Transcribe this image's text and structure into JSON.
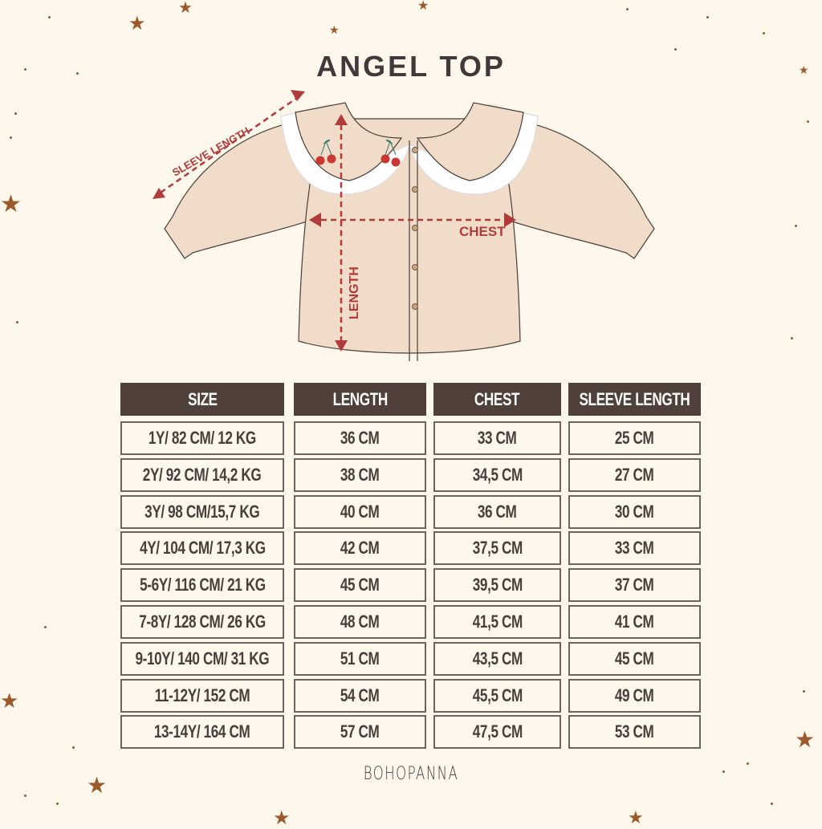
{
  "title": "ANGEL TOP",
  "diagram": {
    "labels": {
      "sleeve_length": "SLEEVE LENGTH",
      "chest": "CHEST",
      "length": "LENGTH"
    },
    "colors": {
      "arrow": "#b13a3a",
      "garment": "#f0dcc8",
      "outline": "#4a3e38",
      "collar_lace": "#ffffff",
      "cherry": "#c8382e",
      "leaf": "#2f7a6a"
    }
  },
  "table": {
    "headers": [
      "SIZE",
      "LENGTH",
      "CHEST",
      "SLEEVE LENGTH"
    ],
    "rows": [
      [
        "1Y/ 82 CM/ 12 KG",
        "36 CM",
        "33 CM",
        "25 CM"
      ],
      [
        "2Y/ 92 CM/ 14,2 KG",
        "38 CM",
        "34,5 CM",
        "27 CM"
      ],
      [
        "3Y/ 98 CM/15,7 KG",
        "40 CM",
        "36 CM",
        "30 CM"
      ],
      [
        "4Y/ 104 CM/ 17,3 KG",
        "42 CM",
        "37,5 CM",
        "33 CM"
      ],
      [
        "5-6Y/ 116 CM/ 21 KG",
        "45 CM",
        "39,5 CM",
        "37 CM"
      ],
      [
        "7-8Y/ 128 CM/ 26 KG",
        "48 CM",
        "41,5 CM",
        "41 CM"
      ],
      [
        "9-10Y/ 140 CM/ 31 KG",
        "51 CM",
        "43,5 CM",
        "45 CM"
      ],
      [
        "11-12Y/ 152 CM",
        "54 CM",
        "45,5 CM",
        "49 CM"
      ],
      [
        "13-14Y/ 164 CM",
        "57 CM",
        "47,5 CM",
        "53 CM"
      ]
    ]
  },
  "brand": "BOHOPANNA",
  "colors": {
    "background": "#fdf7ec",
    "header_fill": "#4f4039",
    "star": "#9a5a2c"
  }
}
